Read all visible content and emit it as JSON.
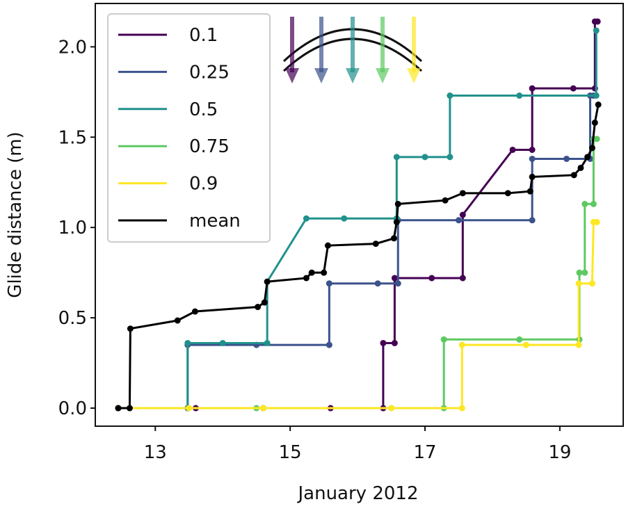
{
  "chart_data": {
    "type": "line",
    "xlabel": "January 2012",
    "ylabel": "Glide distance (m)",
    "xlim": [
      12.11,
      19.94
    ],
    "ylim": [
      -0.1,
      2.24
    ],
    "xticks": [
      13,
      15,
      17,
      19
    ],
    "yticks": [
      {
        "value": 0,
        "label": "0.0"
      },
      0.5,
      {
        "value": 1,
        "label": "1.0"
      },
      1.5,
      {
        "value": 2,
        "label": "2.0"
      }
    ],
    "legend": "upper left",
    "series": [
      {
        "name": "0.1",
        "color": "#440154",
        "x": [
          12.45,
          13.6,
          14.6,
          15.6,
          16.38,
          16.38,
          16.55,
          16.55,
          17.1,
          17.56,
          17.56,
          18.3,
          18.59,
          18.59,
          19.2,
          19.52,
          19.52,
          19.56
        ],
        "values": [
          0,
          0,
          0,
          0,
          0,
          0.36,
          0.36,
          0.72,
          0.72,
          0.72,
          1.07,
          1.43,
          1.43,
          1.77,
          1.77,
          1.77,
          2.14,
          2.14
        ]
      },
      {
        "name": "0.25",
        "color": "#3b528b",
        "x": [
          12.45,
          13.48,
          13.48,
          14.5,
          15.58,
          15.58,
          16.3,
          16.6,
          16.6,
          17.5,
          18.59,
          18.59,
          19.1,
          19.45,
          19.45,
          19.5
        ],
        "values": [
          0,
          0,
          0.35,
          0.35,
          0.35,
          0.69,
          0.69,
          0.69,
          1.04,
          1.04,
          1.04,
          1.38,
          1.38,
          1.38,
          1.73,
          1.73
        ]
      },
      {
        "name": "0.5",
        "color": "#21918c",
        "x": [
          12.45,
          13.48,
          13.48,
          14.0,
          14.66,
          14.66,
          15.24,
          15.8,
          16.58,
          16.58,
          17.0,
          17.37,
          17.37,
          18.4,
          19.54,
          19.54
        ],
        "values": [
          0,
          0,
          0.36,
          0.36,
          0.36,
          0.7,
          1.05,
          1.05,
          1.05,
          1.39,
          1.39,
          1.39,
          1.73,
          1.73,
          1.73,
          2.09
        ]
      },
      {
        "name": "0.75",
        "color": "#5ec962",
        "x": [
          12.45,
          14.5,
          16.5,
          17.28,
          17.28,
          18.4,
          19.29,
          19.29,
          19.37,
          19.37,
          19.5,
          19.5,
          19.55
        ],
        "values": [
          0,
          0,
          0,
          0,
          0.38,
          0.38,
          0.38,
          0.75,
          0.75,
          1.13,
          1.13,
          1.49,
          1.49
        ]
      },
      {
        "name": "0.9",
        "color": "#fde725",
        "x": [
          12.45,
          13.5,
          14.6,
          16.5,
          17.55,
          17.55,
          18.5,
          19.28,
          19.28,
          19.48,
          19.5,
          19.55
        ],
        "values": [
          0,
          0,
          0,
          0,
          0,
          0.35,
          0.35,
          0.35,
          0.69,
          0.69,
          1.03,
          1.03
        ]
      },
      {
        "name": "mean",
        "color": "#000000",
        "x": [
          12.45,
          12.62,
          12.63,
          13.33,
          13.59,
          14.52,
          14.62,
          14.66,
          15.24,
          15.32,
          15.5,
          15.56,
          16.27,
          16.54,
          16.58,
          16.6,
          17.3,
          17.56,
          18.23,
          18.56,
          18.59,
          19.21,
          19.31,
          19.41,
          19.48,
          19.52,
          19.57
        ],
        "values": [
          0,
          0,
          0.44,
          0.485,
          0.535,
          0.56,
          0.585,
          0.7,
          0.72,
          0.75,
          0.75,
          0.9,
          0.91,
          0.94,
          1.03,
          1.13,
          1.15,
          1.19,
          1.19,
          1.2,
          1.28,
          1.29,
          1.33,
          1.39,
          1.44,
          1.58,
          1.68
        ]
      }
    ]
  }
}
